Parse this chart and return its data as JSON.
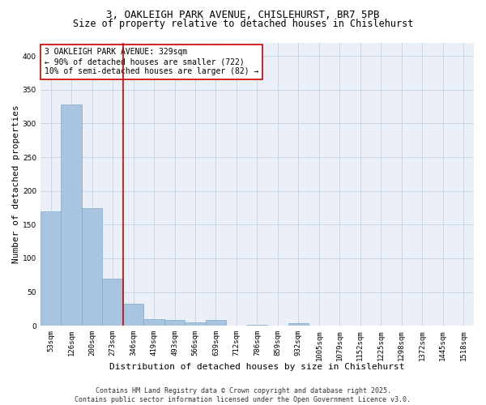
{
  "title_line1": "3, OAKLEIGH PARK AVENUE, CHISLEHURST, BR7 5PB",
  "title_line2": "Size of property relative to detached houses in Chislehurst",
  "categories": [
    "53sqm",
    "126sqm",
    "200sqm",
    "273sqm",
    "346sqm",
    "419sqm",
    "493sqm",
    "566sqm",
    "639sqm",
    "712sqm",
    "786sqm",
    "859sqm",
    "932sqm",
    "1005sqm",
    "1079sqm",
    "1152sqm",
    "1225sqm",
    "1298sqm",
    "1372sqm",
    "1445sqm",
    "1518sqm"
  ],
  "values": [
    170,
    328,
    175,
    70,
    33,
    10,
    9,
    5,
    9,
    0,
    2,
    0,
    4,
    0,
    0,
    0,
    0,
    0,
    0,
    0,
    0
  ],
  "bar_color": "#a8c4e0",
  "bar_edge_color": "#7aaac8",
  "vline_x": 3.5,
  "vline_color": "#cc0000",
  "annotation_text": "3 OAKLEIGH PARK AVENUE: 329sqm\n← 90% of detached houses are smaller (722)\n10% of semi-detached houses are larger (82) →",
  "annotation_box_color": "#ffffff",
  "annotation_box_edge": "#cc0000",
  "xlabel": "Distribution of detached houses by size in Chislehurst",
  "ylabel": "Number of detached properties",
  "ylim": [
    0,
    420
  ],
  "yticks": [
    0,
    50,
    100,
    150,
    200,
    250,
    300,
    350,
    400
  ],
  "grid_color": "#c8d4e8",
  "bg_color": "#eaeff8",
  "footer": "Contains HM Land Registry data © Crown copyright and database right 2025.\nContains public sector information licensed under the Open Government Licence v3.0.",
  "title_fontsize": 9,
  "subtitle_fontsize": 8.5,
  "xlabel_fontsize": 8,
  "ylabel_fontsize": 8,
  "tick_fontsize": 6.5,
  "annotation_fontsize": 7,
  "footer_fontsize": 6
}
